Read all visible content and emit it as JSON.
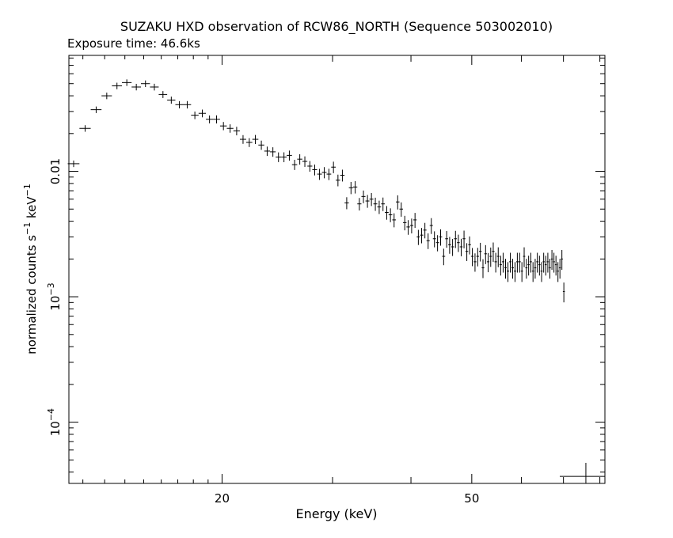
{
  "chart_data": {
    "type": "scatter",
    "title": "SUZAKU HXD observation of RCW86_NORTH (Sequence 503002010)",
    "subtitle": "Exposure time: 46.6ks",
    "xlabel": "Energy (keV)",
    "ylabel_main": "normalized counts s",
    "ylabel_sup1": "−1",
    "ylabel_mid": " keV",
    "ylabel_sup2": "−1",
    "xscale": "log",
    "yscale": "log",
    "xlim": [
      11.4,
      81.5
    ],
    "ylim": [
      3.25e-05,
      0.084
    ],
    "x_major_ticks": [
      20,
      50
    ],
    "x_tick_labels": [
      "20",
      "50"
    ],
    "y_major_ticks": [
      0.0001,
      0.001,
      0.01
    ],
    "y_tick_labels": [
      {
        "base": "10",
        "exp": "−4"
      },
      {
        "base": "10",
        "exp": "−3"
      },
      {
        "base": "0.01",
        "exp": ""
      }
    ],
    "grid": false,
    "series": [
      {
        "x": [
          11.6,
          12.1,
          12.6,
          13.1,
          13.6,
          14.1,
          14.6,
          15.1,
          15.6,
          16.1,
          16.6,
          17.1,
          17.6,
          18.1,
          18.6,
          19.1,
          19.6,
          20.1,
          20.6,
          21.1,
          21.6,
          22.1,
          22.6,
          23.1,
          23.6,
          24.1,
          24.6,
          25.1,
          25.6,
          26.1,
          26.6,
          27.1,
          27.6,
          28.1,
          28.6,
          29.1,
          29.6,
          30.1,
          30.6,
          31.1,
          31.6,
          32.1,
          32.6,
          33.1,
          33.6,
          34.1,
          34.6,
          35.1,
          35.6,
          36.1,
          36.6,
          37.1,
          37.6,
          38.1,
          38.6,
          39.1,
          39.6,
          40.1,
          40.6,
          41.1,
          41.6,
          42.1,
          42.6,
          43.1,
          43.6,
          44.1,
          44.6,
          45.1,
          45.6,
          46.1,
          46.6,
          47.1,
          47.6,
          48.1,
          48.6,
          49.1,
          49.6,
          50.1,
          50.6,
          51.1,
          51.6,
          52.1,
          52.6,
          53.1,
          53.6,
          54.1,
          54.6,
          55.1,
          55.6,
          56.1,
          56.6,
          57.1,
          57.6,
          58.1,
          58.6,
          59.1,
          59.6,
          60.1,
          60.6,
          61.1,
          61.6,
          62.1,
          62.6,
          63.1,
          63.6,
          64.1,
          64.6,
          65.1,
          65.6,
          66.1,
          66.6,
          67.1,
          67.6,
          68.1,
          68.6,
          69.1,
          69.6,
          70.1
        ],
        "y": [
          0.0115,
          0.022,
          0.031,
          0.04,
          0.048,
          0.051,
          0.047,
          0.05,
          0.047,
          0.041,
          0.037,
          0.034,
          0.034,
          0.028,
          0.029,
          0.026,
          0.026,
          0.023,
          0.022,
          0.021,
          0.018,
          0.017,
          0.018,
          0.0162,
          0.0145,
          0.0143,
          0.013,
          0.013,
          0.0134,
          0.0113,
          0.0125,
          0.012,
          0.011,
          0.0103,
          0.0095,
          0.0098,
          0.0095,
          0.0108,
          0.0085,
          0.0093,
          0.0056,
          0.0074,
          0.0075,
          0.0055,
          0.0063,
          0.0058,
          0.006,
          0.0055,
          0.0052,
          0.0055,
          0.0047,
          0.0045,
          0.0041,
          0.0057,
          0.005,
          0.0039,
          0.0036,
          0.0037,
          0.0041,
          0.003,
          0.0031,
          0.0034,
          0.0028,
          0.0037,
          0.0029,
          0.0027,
          0.003,
          0.0021,
          0.0029,
          0.0026,
          0.0025,
          0.0029,
          0.0027,
          0.0025,
          0.0029,
          0.0023,
          0.0026,
          0.0021,
          0.0019,
          0.0021,
          0.0023,
          0.0017,
          0.0022,
          0.0019,
          0.0021,
          0.0023,
          0.0019,
          0.0021,
          0.0018,
          0.0019,
          0.0017,
          0.0016,
          0.0019,
          0.0017,
          0.0016,
          0.0019,
          0.0019,
          0.0016,
          0.0021,
          0.0017,
          0.0018,
          0.0019,
          0.0016,
          0.0017,
          0.0019,
          0.0018,
          0.0016,
          0.0019,
          0.0018,
          0.0019,
          0.0017,
          0.002,
          0.0019,
          0.0018,
          0.0016,
          0.0017,
          0.002,
          0.0011
        ]
      }
    ],
    "legend_marker": {
      "x": 76,
      "y": 3.7e-05
    }
  }
}
